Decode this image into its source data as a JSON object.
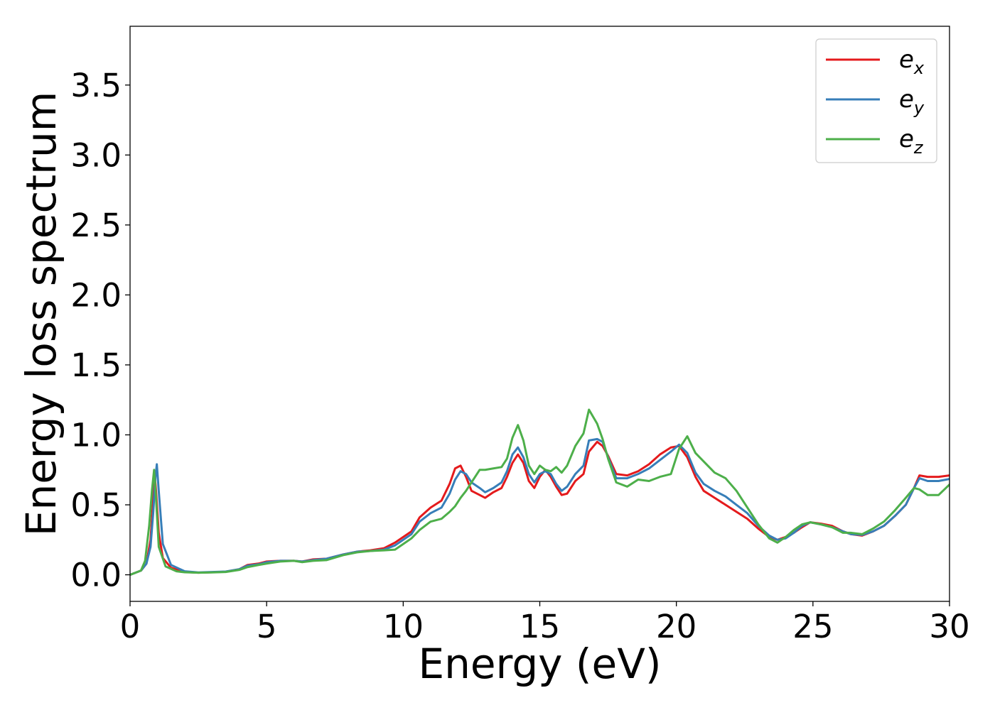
{
  "chart_data": {
    "type": "line",
    "title": "",
    "xlabel": "Energy (eV)",
    "ylabel": "Energy loss spectrum",
    "xlim": [
      0,
      30
    ],
    "ylim": [
      -0.19,
      3.92
    ],
    "xticks": [
      0,
      5,
      10,
      15,
      20,
      25,
      30
    ],
    "xtick_labels": [
      "0",
      "5",
      "10",
      "15",
      "20",
      "25",
      "30"
    ],
    "yticks": [
      0.0,
      0.5,
      1.0,
      1.5,
      2.0,
      2.5,
      3.0,
      3.5
    ],
    "ytick_labels": [
      "0.0",
      "0.5",
      "1.0",
      "1.5",
      "2.0",
      "2.5",
      "3.0",
      "3.5"
    ],
    "grid": false,
    "legend_position": "top-right",
    "series": [
      {
        "name": "e_x",
        "name_base": "e",
        "name_sub": "x",
        "color": "#e41a1c",
        "points": [
          [
            0,
            0
          ],
          [
            0.4,
            0.03
          ],
          [
            0.6,
            0.08
          ],
          [
            0.75,
            0.25
          ],
          [
            0.85,
            0.55
          ],
          [
            0.9,
            0.72
          ],
          [
            0.95,
            0.6
          ],
          [
            1.05,
            0.3
          ],
          [
            1.2,
            0.12
          ],
          [
            1.5,
            0.05
          ],
          [
            2,
            0.02
          ],
          [
            2.5,
            0.015
          ],
          [
            3,
            0.018
          ],
          [
            3.5,
            0.022
          ],
          [
            4,
            0.04
          ],
          [
            4.3,
            0.07
          ],
          [
            4.7,
            0.08
          ],
          [
            5,
            0.095
          ],
          [
            5.5,
            0.1
          ],
          [
            6,
            0.1
          ],
          [
            6.3,
            0.095
          ],
          [
            6.7,
            0.11
          ],
          [
            7.2,
            0.115
          ],
          [
            7.8,
            0.145
          ],
          [
            8.3,
            0.165
          ],
          [
            8.8,
            0.175
          ],
          [
            9.3,
            0.19
          ],
          [
            9.7,
            0.23
          ],
          [
            10,
            0.27
          ],
          [
            10.3,
            0.31
          ],
          [
            10.6,
            0.41
          ],
          [
            11,
            0.48
          ],
          [
            11.4,
            0.53
          ],
          [
            11.7,
            0.65
          ],
          [
            11.9,
            0.76
          ],
          [
            12.1,
            0.78
          ],
          [
            12.3,
            0.7
          ],
          [
            12.5,
            0.6
          ],
          [
            12.8,
            0.57
          ],
          [
            13,
            0.55
          ],
          [
            13.3,
            0.59
          ],
          [
            13.6,
            0.62
          ],
          [
            13.8,
            0.7
          ],
          [
            14,
            0.8
          ],
          [
            14.2,
            0.86
          ],
          [
            14.4,
            0.8
          ],
          [
            14.6,
            0.67
          ],
          [
            14.8,
            0.62
          ],
          [
            15,
            0.7
          ],
          [
            15.2,
            0.75
          ],
          [
            15.4,
            0.7
          ],
          [
            15.6,
            0.63
          ],
          [
            15.8,
            0.57
          ],
          [
            16,
            0.58
          ],
          [
            16.3,
            0.67
          ],
          [
            16.6,
            0.72
          ],
          [
            16.8,
            0.88
          ],
          [
            17.1,
            0.95
          ],
          [
            17.3,
            0.92
          ],
          [
            17.5,
            0.85
          ],
          [
            17.8,
            0.72
          ],
          [
            18.2,
            0.71
          ],
          [
            18.6,
            0.74
          ],
          [
            19,
            0.79
          ],
          [
            19.4,
            0.86
          ],
          [
            19.8,
            0.91
          ],
          [
            20.1,
            0.92
          ],
          [
            20.4,
            0.84
          ],
          [
            20.7,
            0.7
          ],
          [
            21,
            0.6
          ],
          [
            21.4,
            0.55
          ],
          [
            21.8,
            0.5
          ],
          [
            22.2,
            0.45
          ],
          [
            22.6,
            0.4
          ],
          [
            23,
            0.33
          ],
          [
            23.4,
            0.27
          ],
          [
            23.7,
            0.25
          ],
          [
            24,
            0.27
          ],
          [
            24.3,
            0.3
          ],
          [
            24.6,
            0.34
          ],
          [
            24.9,
            0.375
          ],
          [
            25.3,
            0.365
          ],
          [
            25.7,
            0.35
          ],
          [
            26.1,
            0.31
          ],
          [
            26.4,
            0.29
          ],
          [
            26.8,
            0.28
          ],
          [
            27.2,
            0.31
          ],
          [
            27.6,
            0.35
          ],
          [
            28,
            0.42
          ],
          [
            28.4,
            0.5
          ],
          [
            28.7,
            0.62
          ],
          [
            28.9,
            0.71
          ],
          [
            29.2,
            0.7
          ],
          [
            29.6,
            0.7
          ],
          [
            30,
            0.71
          ]
        ]
      },
      {
        "name": "e_y",
        "name_base": "e",
        "name_sub": "y",
        "color": "#377eb8",
        "points": [
          [
            0,
            0
          ],
          [
            0.4,
            0.03
          ],
          [
            0.6,
            0.08
          ],
          [
            0.75,
            0.2
          ],
          [
            0.85,
            0.45
          ],
          [
            0.93,
            0.7
          ],
          [
            0.98,
            0.79
          ],
          [
            1.05,
            0.6
          ],
          [
            1.2,
            0.22
          ],
          [
            1.5,
            0.07
          ],
          [
            2,
            0.025
          ],
          [
            2.5,
            0.017
          ],
          [
            3,
            0.02
          ],
          [
            3.5,
            0.023
          ],
          [
            4,
            0.04
          ],
          [
            4.3,
            0.065
          ],
          [
            4.7,
            0.075
          ],
          [
            5,
            0.09
          ],
          [
            5.5,
            0.1
          ],
          [
            6,
            0.1
          ],
          [
            6.3,
            0.095
          ],
          [
            6.7,
            0.105
          ],
          [
            7.2,
            0.115
          ],
          [
            7.8,
            0.145
          ],
          [
            8.3,
            0.165
          ],
          [
            8.8,
            0.17
          ],
          [
            9.3,
            0.18
          ],
          [
            9.7,
            0.21
          ],
          [
            10,
            0.25
          ],
          [
            10.3,
            0.29
          ],
          [
            10.6,
            0.38
          ],
          [
            11,
            0.44
          ],
          [
            11.4,
            0.48
          ],
          [
            11.7,
            0.58
          ],
          [
            11.9,
            0.68
          ],
          [
            12.1,
            0.74
          ],
          [
            12.3,
            0.72
          ],
          [
            12.5,
            0.66
          ],
          [
            12.8,
            0.62
          ],
          [
            13,
            0.59
          ],
          [
            13.3,
            0.62
          ],
          [
            13.6,
            0.66
          ],
          [
            13.8,
            0.74
          ],
          [
            14,
            0.86
          ],
          [
            14.2,
            0.91
          ],
          [
            14.4,
            0.84
          ],
          [
            14.6,
            0.72
          ],
          [
            14.8,
            0.66
          ],
          [
            15,
            0.72
          ],
          [
            15.2,
            0.74
          ],
          [
            15.4,
            0.72
          ],
          [
            15.6,
            0.65
          ],
          [
            15.8,
            0.6
          ],
          [
            16,
            0.63
          ],
          [
            16.3,
            0.72
          ],
          [
            16.6,
            0.78
          ],
          [
            16.8,
            0.96
          ],
          [
            17.1,
            0.97
          ],
          [
            17.3,
            0.95
          ],
          [
            17.5,
            0.84
          ],
          [
            17.8,
            0.69
          ],
          [
            18.2,
            0.69
          ],
          [
            18.6,
            0.72
          ],
          [
            19,
            0.76
          ],
          [
            19.4,
            0.82
          ],
          [
            19.8,
            0.88
          ],
          [
            20.1,
            0.93
          ],
          [
            20.4,
            0.87
          ],
          [
            20.7,
            0.73
          ],
          [
            21,
            0.65
          ],
          [
            21.4,
            0.6
          ],
          [
            21.8,
            0.56
          ],
          [
            22.2,
            0.5
          ],
          [
            22.6,
            0.44
          ],
          [
            23,
            0.35
          ],
          [
            23.4,
            0.28
          ],
          [
            23.7,
            0.25
          ],
          [
            24,
            0.26
          ],
          [
            24.3,
            0.3
          ],
          [
            24.6,
            0.35
          ],
          [
            24.9,
            0.375
          ],
          [
            25.3,
            0.36
          ],
          [
            25.7,
            0.34
          ],
          [
            26.1,
            0.31
          ],
          [
            26.4,
            0.29
          ],
          [
            26.8,
            0.285
          ],
          [
            27.2,
            0.31
          ],
          [
            27.6,
            0.35
          ],
          [
            28,
            0.42
          ],
          [
            28.4,
            0.5
          ],
          [
            28.7,
            0.62
          ],
          [
            28.9,
            0.69
          ],
          [
            29.2,
            0.67
          ],
          [
            29.6,
            0.67
          ],
          [
            30,
            0.685
          ]
        ]
      },
      {
        "name": "e_z",
        "name_base": "e",
        "name_sub": "z",
        "color": "#4daf4a",
        "points": [
          [
            0,
            0
          ],
          [
            0.4,
            0.03
          ],
          [
            0.55,
            0.1
          ],
          [
            0.7,
            0.35
          ],
          [
            0.8,
            0.6
          ],
          [
            0.88,
            0.75
          ],
          [
            0.95,
            0.55
          ],
          [
            1.05,
            0.2
          ],
          [
            1.3,
            0.06
          ],
          [
            1.7,
            0.025
          ],
          [
            2,
            0.018
          ],
          [
            2.5,
            0.015
          ],
          [
            3,
            0.017
          ],
          [
            3.5,
            0.02
          ],
          [
            4,
            0.035
          ],
          [
            4.3,
            0.055
          ],
          [
            4.7,
            0.07
          ],
          [
            5,
            0.08
          ],
          [
            5.5,
            0.095
          ],
          [
            6,
            0.1
          ],
          [
            6.3,
            0.09
          ],
          [
            6.7,
            0.1
          ],
          [
            7.2,
            0.105
          ],
          [
            7.8,
            0.14
          ],
          [
            8.3,
            0.16
          ],
          [
            8.8,
            0.17
          ],
          [
            9.3,
            0.175
          ],
          [
            9.7,
            0.18
          ],
          [
            10,
            0.22
          ],
          [
            10.3,
            0.26
          ],
          [
            10.6,
            0.32
          ],
          [
            11,
            0.38
          ],
          [
            11.4,
            0.4
          ],
          [
            11.7,
            0.45
          ],
          [
            11.9,
            0.49
          ],
          [
            12.1,
            0.55
          ],
          [
            12.3,
            0.6
          ],
          [
            12.5,
            0.66
          ],
          [
            12.8,
            0.75
          ],
          [
            13,
            0.75
          ],
          [
            13.3,
            0.76
          ],
          [
            13.6,
            0.77
          ],
          [
            13.8,
            0.83
          ],
          [
            14,
            0.98
          ],
          [
            14.2,
            1.07
          ],
          [
            14.4,
            0.96
          ],
          [
            14.6,
            0.78
          ],
          [
            14.8,
            0.72
          ],
          [
            15,
            0.78
          ],
          [
            15.2,
            0.75
          ],
          [
            15.4,
            0.74
          ],
          [
            15.6,
            0.77
          ],
          [
            15.8,
            0.73
          ],
          [
            16,
            0.78
          ],
          [
            16.3,
            0.92
          ],
          [
            16.6,
            1.01
          ],
          [
            16.8,
            1.18
          ],
          [
            17.1,
            1.08
          ],
          [
            17.3,
            0.97
          ],
          [
            17.5,
            0.83
          ],
          [
            17.8,
            0.66
          ],
          [
            18.2,
            0.63
          ],
          [
            18.6,
            0.68
          ],
          [
            19,
            0.67
          ],
          [
            19.4,
            0.7
          ],
          [
            19.8,
            0.72
          ],
          [
            20.1,
            0.9
          ],
          [
            20.4,
            0.99
          ],
          [
            20.7,
            0.87
          ],
          [
            21,
            0.81
          ],
          [
            21.4,
            0.73
          ],
          [
            21.8,
            0.69
          ],
          [
            22.2,
            0.6
          ],
          [
            22.6,
            0.48
          ],
          [
            23,
            0.36
          ],
          [
            23.4,
            0.26
          ],
          [
            23.7,
            0.23
          ],
          [
            24,
            0.27
          ],
          [
            24.3,
            0.32
          ],
          [
            24.6,
            0.36
          ],
          [
            24.9,
            0.375
          ],
          [
            25.3,
            0.36
          ],
          [
            25.7,
            0.34
          ],
          [
            26.1,
            0.3
          ],
          [
            26.4,
            0.3
          ],
          [
            26.8,
            0.29
          ],
          [
            27.2,
            0.33
          ],
          [
            27.6,
            0.38
          ],
          [
            28,
            0.46
          ],
          [
            28.4,
            0.55
          ],
          [
            28.7,
            0.62
          ],
          [
            28.9,
            0.61
          ],
          [
            29.2,
            0.57
          ],
          [
            29.6,
            0.57
          ],
          [
            30,
            0.645
          ]
        ]
      }
    ]
  }
}
